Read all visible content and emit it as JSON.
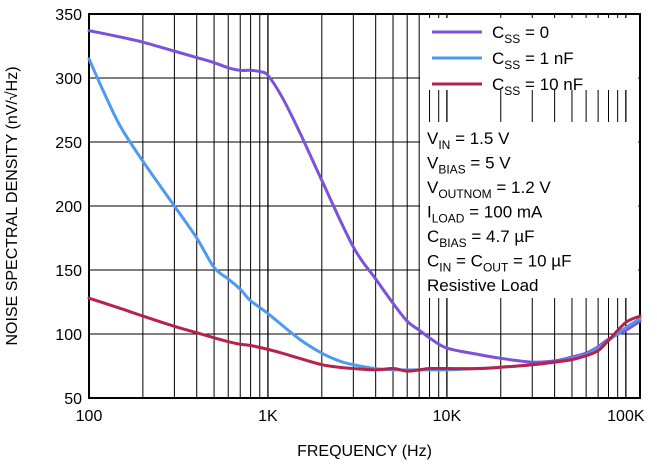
{
  "chart_data": {
    "type": "line",
    "title": "",
    "xlabel": "FREQUENCY (Hz)",
    "ylabel": "NOISE SPECTRAL DENSITY (nV/√Hz)",
    "xscale": "log",
    "xlim": [
      100,
      120000
    ],
    "ylim": [
      50,
      350
    ],
    "x_ticks": [
      {
        "value": 100,
        "label": "100"
      },
      {
        "value": 1000,
        "label": "1K"
      },
      {
        "value": 10000,
        "label": "10K"
      },
      {
        "value": 100000,
        "label": "100K"
      }
    ],
    "y_ticks": [
      {
        "value": 50,
        "label": "50"
      },
      {
        "value": 100,
        "label": "100"
      },
      {
        "value": 150,
        "label": "150"
      },
      {
        "value": 200,
        "label": "200"
      },
      {
        "value": 250,
        "label": "250"
      },
      {
        "value": 300,
        "label": "300"
      },
      {
        "value": 350,
        "label": "350"
      }
    ],
    "grid": true,
    "legend_position": "top-right",
    "series": [
      {
        "name": "CSS = 0",
        "name_main": "C",
        "name_sub": "SS",
        "name_rest": " = 0",
        "color": "#7B52D9",
        "points": [
          [
            100,
            337
          ],
          [
            150,
            332
          ],
          [
            200,
            328
          ],
          [
            300,
            321
          ],
          [
            400,
            316
          ],
          [
            500,
            312
          ],
          [
            600,
            308
          ],
          [
            700,
            306
          ],
          [
            800,
            306
          ],
          [
            900,
            305
          ],
          [
            1000,
            302
          ],
          [
            1200,
            285
          ],
          [
            1500,
            258
          ],
          [
            2000,
            220
          ],
          [
            3000,
            168
          ],
          [
            4000,
            143
          ],
          [
            5000,
            124
          ],
          [
            6000,
            110
          ],
          [
            7000,
            103
          ],
          [
            8000,
            97
          ],
          [
            10000,
            89
          ],
          [
            15000,
            84
          ],
          [
            20000,
            81
          ],
          [
            30000,
            78
          ],
          [
            40000,
            79
          ],
          [
            50000,
            82
          ],
          [
            60000,
            85
          ],
          [
            70000,
            90
          ],
          [
            80000,
            96
          ],
          [
            100000,
            103
          ],
          [
            120000,
            110
          ]
        ]
      },
      {
        "name": "CSS = 1 nF",
        "name_main": "C",
        "name_sub": "SS",
        "name_rest": " = 1 nF",
        "color": "#4E9AF0",
        "points": [
          [
            100,
            315
          ],
          [
            120,
            290
          ],
          [
            150,
            262
          ],
          [
            200,
            235
          ],
          [
            300,
            200
          ],
          [
            400,
            175
          ],
          [
            500,
            152
          ],
          [
            600,
            143
          ],
          [
            700,
            135
          ],
          [
            800,
            126
          ],
          [
            1000,
            116
          ],
          [
            1500,
            96
          ],
          [
            2000,
            85
          ],
          [
            2500,
            79
          ],
          [
            3000,
            76
          ],
          [
            4000,
            73
          ],
          [
            5000,
            72
          ],
          [
            6000,
            72
          ],
          [
            7000,
            72
          ],
          [
            8000,
            72
          ],
          [
            10000,
            72
          ],
          [
            15000,
            73
          ],
          [
            20000,
            74
          ],
          [
            30000,
            76
          ],
          [
            40000,
            78
          ],
          [
            50000,
            81
          ],
          [
            60000,
            84
          ],
          [
            70000,
            89
          ],
          [
            80000,
            95
          ],
          [
            100000,
            105
          ],
          [
            120000,
            112
          ]
        ]
      },
      {
        "name": "CSS = 10 nF",
        "name_main": "C",
        "name_sub": "SS",
        "name_rest": " = 10 nF",
        "color": "#B8214A",
        "points": [
          [
            100,
            128
          ],
          [
            150,
            120
          ],
          [
            200,
            114
          ],
          [
            300,
            106
          ],
          [
            400,
            101
          ],
          [
            500,
            97
          ],
          [
            600,
            94
          ],
          [
            700,
            92
          ],
          [
            800,
            91
          ],
          [
            1000,
            88
          ],
          [
            1200,
            85
          ],
          [
            1500,
            81
          ],
          [
            2000,
            76
          ],
          [
            2500,
            74
          ],
          [
            3000,
            73
          ],
          [
            4000,
            72
          ],
          [
            5000,
            73
          ],
          [
            6000,
            71
          ],
          [
            7000,
            72
          ],
          [
            8000,
            73
          ],
          [
            10000,
            73
          ],
          [
            15000,
            73
          ],
          [
            20000,
            74
          ],
          [
            30000,
            76
          ],
          [
            40000,
            78
          ],
          [
            50000,
            80
          ],
          [
            60000,
            83
          ],
          [
            70000,
            87
          ],
          [
            80000,
            95
          ],
          [
            100000,
            109
          ],
          [
            120000,
            114
          ]
        ]
      }
    ],
    "annotations": [
      [
        {
          "t": "V"
        },
        {
          "t": "IN",
          "sub": true
        },
        {
          "t": " = 1.5 V"
        }
      ],
      [
        {
          "t": "V"
        },
        {
          "t": "BIAS",
          "sub": true
        },
        {
          "t": " = 5 V"
        }
      ],
      [
        {
          "t": "V"
        },
        {
          "t": "OUTNOM",
          "sub": true
        },
        {
          "t": " = 1.2 V"
        }
      ],
      [
        {
          "t": "I"
        },
        {
          "t": "LOAD",
          "sub": true
        },
        {
          "t": " = 100 mA"
        }
      ],
      [
        {
          "t": "C"
        },
        {
          "t": "BIAS",
          "sub": true
        },
        {
          "t": " = 4.7 µF"
        }
      ],
      [
        {
          "t": "C"
        },
        {
          "t": "IN",
          "sub": true
        },
        {
          "t": " = C"
        },
        {
          "t": "OUT",
          "sub": true
        },
        {
          "t": " = 10 µF"
        }
      ],
      [
        {
          "t": "Resistive Load"
        }
      ]
    ]
  }
}
